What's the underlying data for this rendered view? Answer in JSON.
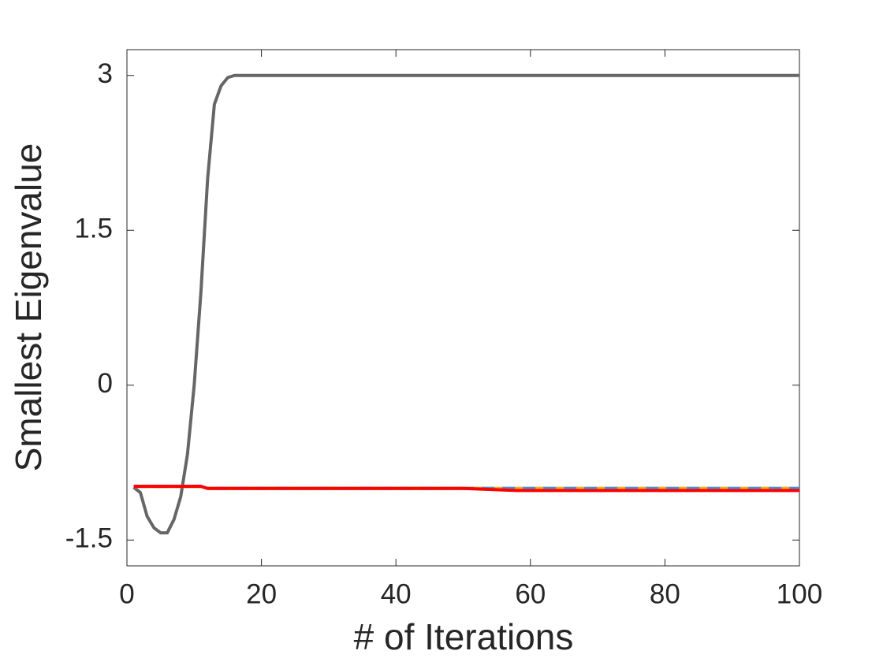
{
  "chart_data": {
    "type": "line",
    "xlabel": "# of Iterations",
    "ylabel": "Smallest Eigenvalue",
    "xlim": [
      0,
      100
    ],
    "xticks": [
      0,
      20,
      40,
      60,
      80,
      100
    ],
    "ylim": [
      -1.75,
      3.25
    ],
    "yticks": [
      -1.5,
      0,
      1.5,
      3
    ],
    "series": [
      {
        "color": "#666666",
        "dash": false,
        "x": [
          1,
          2,
          3,
          4,
          5,
          6,
          7,
          8,
          9,
          10,
          11,
          12,
          13,
          14,
          15,
          16,
          100
        ],
        "values": [
          -0.99,
          -1.04,
          -1.27,
          -1.38,
          -1.43,
          -1.43,
          -1.3,
          -1.08,
          -0.67,
          0,
          0.9,
          2.0,
          2.72,
          2.9,
          2.98,
          3,
          3
        ]
      },
      {
        "color": "#77ac30",
        "dash": false,
        "x": [
          1,
          11,
          12,
          100
        ],
        "values": [
          -0.98,
          -0.98,
          -1.0,
          -1.0
        ]
      },
      {
        "color": "#edb120",
        "dash": false,
        "x": [
          1,
          11,
          12,
          58,
          100
        ],
        "values": [
          -0.98,
          -0.98,
          -1.0,
          -1.0,
          -1.0
        ]
      },
      {
        "color": "#4d8fd6",
        "dash": true,
        "x": [
          1,
          11,
          12,
          58,
          100
        ],
        "values": [
          -0.98,
          -0.98,
          -1.0,
          -1.0,
          -1.0
        ]
      },
      {
        "color": "#ff0000",
        "dash": false,
        "x": [
          1,
          11,
          12,
          50,
          58,
          100
        ],
        "values": [
          -0.98,
          -0.98,
          -1.0,
          -1.0,
          -1.02,
          -1.02
        ]
      }
    ]
  }
}
